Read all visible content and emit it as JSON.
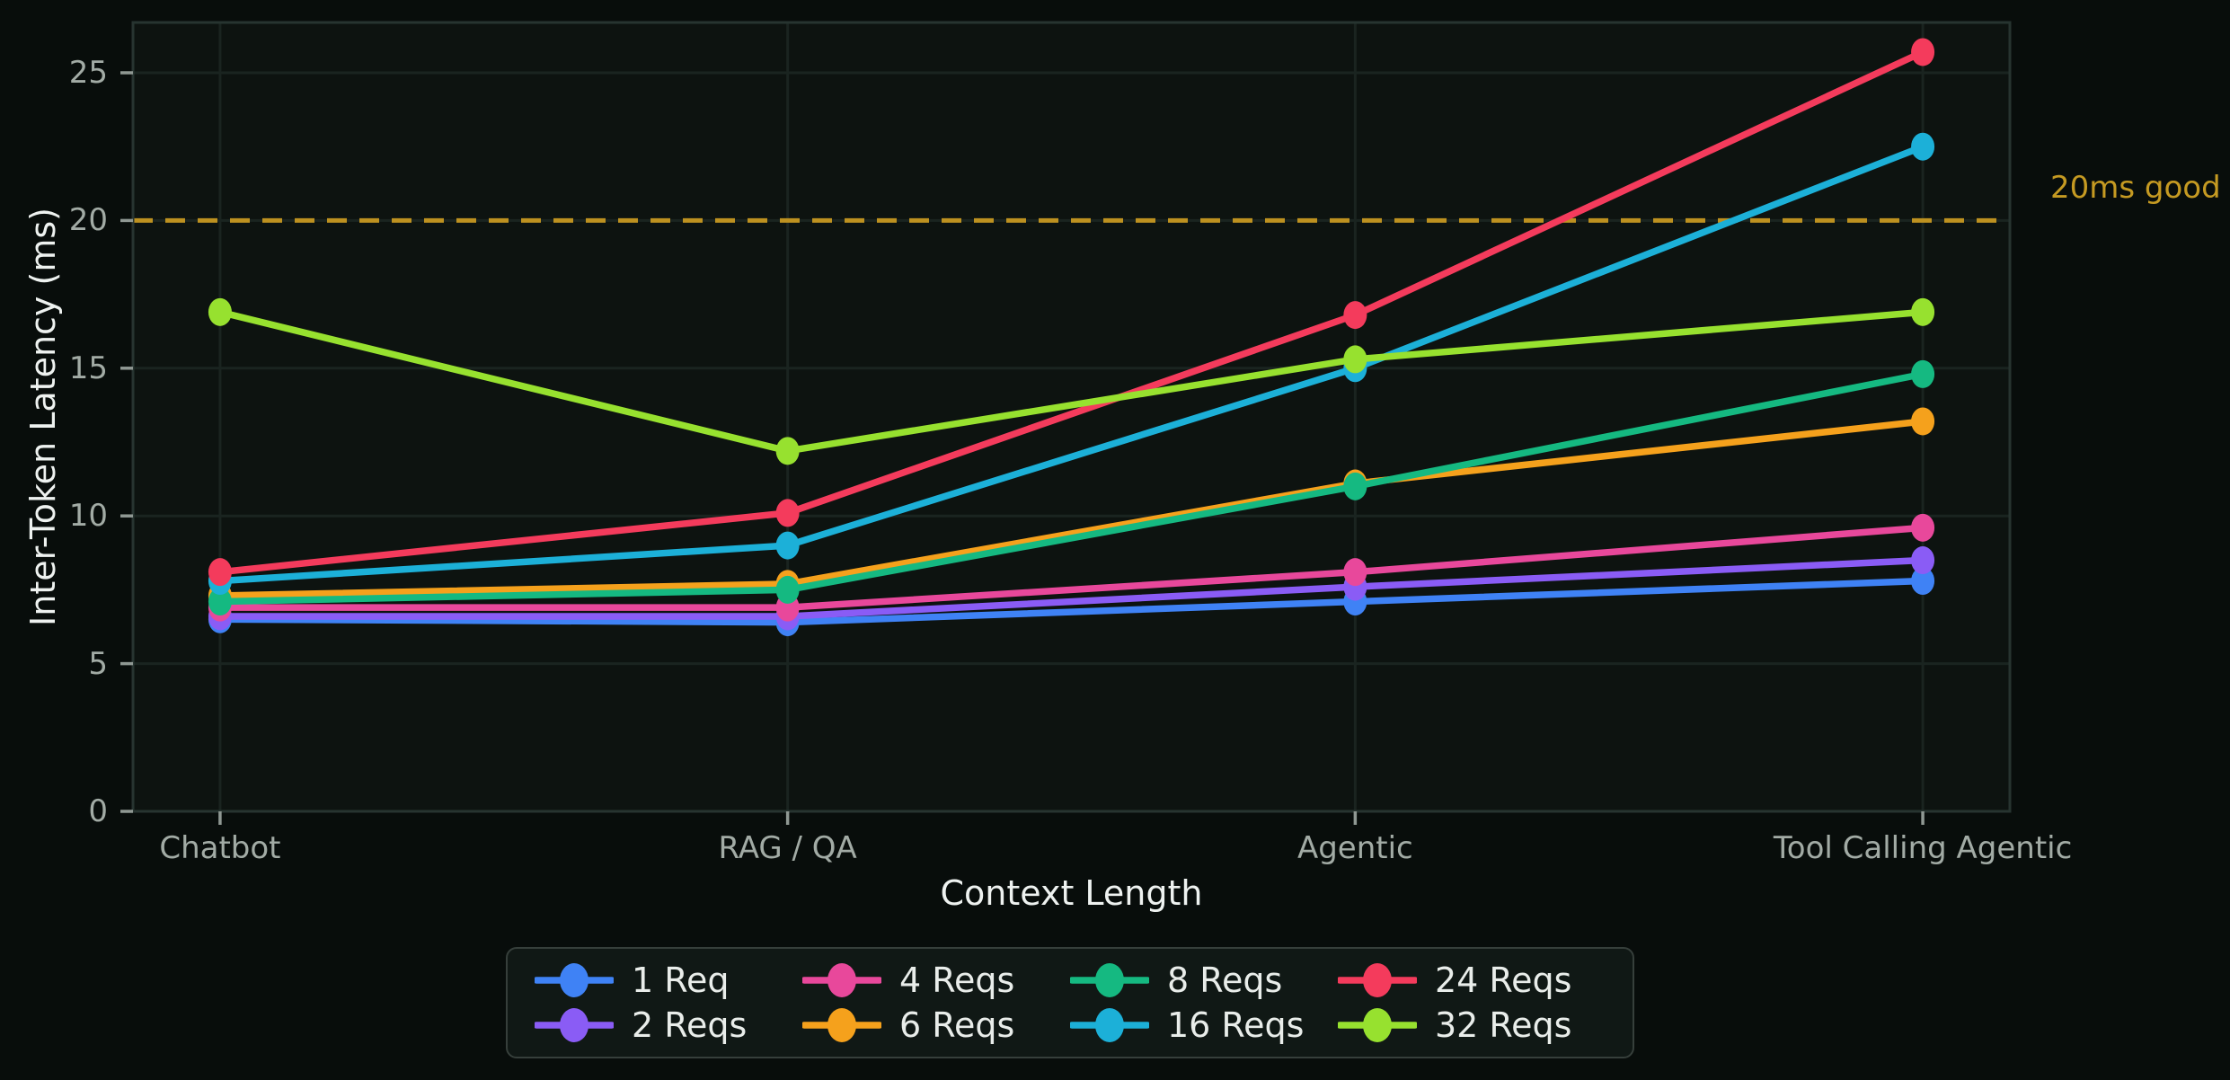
{
  "chart_data": {
    "type": "line",
    "title": "",
    "xlabel": "Context Length",
    "ylabel": "Inter-Token Latency (ms)",
    "categories": [
      "Chatbot",
      "RAG / QA",
      "Agentic",
      "Tool Calling Agentic"
    ],
    "yticks": [
      0,
      5,
      10,
      15,
      20,
      25
    ],
    "ylim": [
      0,
      26.7
    ],
    "grid": true,
    "legend_position": "bottom",
    "series": [
      {
        "name": "1 Req",
        "color": "#3f82f5",
        "values": [
          6.5,
          6.4,
          7.1,
          7.8
        ]
      },
      {
        "name": "2 Reqs",
        "color": "#8a5cf5",
        "values": [
          6.6,
          6.6,
          7.6,
          8.5
        ]
      },
      {
        "name": "4 Reqs",
        "color": "#e8489b",
        "values": [
          6.9,
          6.9,
          8.1,
          9.6
        ]
      },
      {
        "name": "6 Reqs",
        "color": "#f5a11c",
        "values": [
          7.3,
          7.7,
          11.1,
          13.2
        ]
      },
      {
        "name": "8 Reqs",
        "color": "#15b981",
        "values": [
          7.1,
          7.5,
          11.0,
          14.8
        ]
      },
      {
        "name": "16 Reqs",
        "color": "#1cb0d8",
        "values": [
          7.8,
          9.0,
          15.0,
          22.5
        ]
      },
      {
        "name": "24 Reqs",
        "color": "#f43b5c",
        "values": [
          8.1,
          10.1,
          16.8,
          25.7
        ]
      },
      {
        "name": "32 Reqs",
        "color": "#97e12f",
        "values": [
          16.9,
          12.2,
          15.3,
          16.9
        ]
      }
    ],
    "threshold": {
      "value": 20,
      "label": "20ms good",
      "line_color": "#bd9120",
      "label_color": "#c59a22"
    }
  },
  "colors": {
    "page_background": "#080d0b",
    "plot_background": "#0d1310",
    "grid_line": "#1a2420",
    "plot_border": "#273430",
    "tick_mark": "#8f9893",
    "tick_label": "#a2aba5",
    "axis_title": "#eef2f0",
    "legend_background": "#101815",
    "legend_border": "#363f3b",
    "legend_text": "#e9edea"
  }
}
